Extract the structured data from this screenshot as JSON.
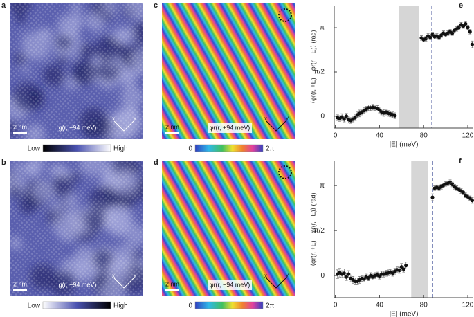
{
  "panels": [
    {
      "letter": "a",
      "scale_bar": "2 nm",
      "label": "g(r, +94 meV)",
      "low": "Low",
      "high": "High",
      "axes": [
        "x",
        "y"
      ]
    },
    {
      "letter": "b",
      "scale_bar": "2 nm",
      "label": "g(r, −94 meV)",
      "low": "Low",
      "high": "High",
      "axes": [
        "x",
        "y"
      ]
    },
    {
      "letter": "c",
      "scale_bar": "2 nm",
      "label": "φr(r, +94 meV)",
      "low": "0",
      "high": "2π",
      "axes": [
        "x",
        "y"
      ]
    },
    {
      "letter": "d",
      "scale_bar": "2 nm",
      "label": "φr(r, −94 meV)",
      "low": "0",
      "high": "2π",
      "axes": [
        "x",
        "y"
      ]
    }
  ],
  "chart_data": [
    {
      "type": "scatter",
      "panel_label": "e",
      "xlabel": "|E| (meV)",
      "ylabel": "⟨φr(r, +E) − φr(r, −E)⟩ (rad)",
      "xlim": [
        -1,
        125
      ],
      "ylim": [
        -0.42,
        3.93
      ],
      "xticks": [
        0,
        40,
        80,
        120
      ],
      "yticks": [
        0,
        {
          "value": 1.5708,
          "label": "π/2"
        },
        {
          "value": 3.1416,
          "label": "π"
        }
      ],
      "shaded_range": [
        57.5,
        76
      ],
      "shade_color": "#d6d6d6",
      "vline": 87.5,
      "vline_color": "#2b3a8c",
      "series": [
        {
          "color": "#111111",
          "x": [
            2,
            4,
            6,
            8,
            10,
            12,
            14,
            16,
            18,
            20,
            22,
            24,
            26,
            28,
            30,
            32,
            34,
            36,
            38,
            40,
            42,
            44,
            46,
            48,
            50,
            52,
            54,
            78,
            80,
            82,
            84,
            86,
            88,
            90,
            92,
            94,
            96,
            98,
            100,
            102,
            104,
            106,
            108,
            110,
            112,
            114,
            116,
            118,
            120,
            122,
            124
          ],
          "values": [
            -0.05,
            -0.08,
            -0.03,
            -0.1,
            0,
            -0.12,
            -0.15,
            -0.1,
            -0.05,
            0.05,
            0.1,
            0.15,
            0.2,
            0.25,
            0.3,
            0.3,
            0.32,
            0.3,
            0.28,
            0.22,
            0.15,
            0.12,
            0.15,
            0.1,
            0.08,
            0.05,
            0.02,
            2.78,
            2.72,
            2.75,
            2.85,
            2.8,
            2.9,
            2.82,
            2.85,
            2.8,
            2.88,
            2.95,
            2.9,
            2.95,
            3.0,
            2.95,
            3.05,
            3.1,
            3.15,
            3.25,
            3.2,
            3.28,
            3.15,
            3.0,
            2.55
          ],
          "errors": [
            0.1,
            0.1,
            0.12,
            0.1,
            0.1,
            0.12,
            0.1,
            0.1,
            0.1,
            0.1,
            0.12,
            0.1,
            0.1,
            0.1,
            0.1,
            0.1,
            0.1,
            0.1,
            0.1,
            0.1,
            0.1,
            0.12,
            0.1,
            0.1,
            0.1,
            0.1,
            0.1,
            0.08,
            0.08,
            0.08,
            0.08,
            0.08,
            0.08,
            0.08,
            0.08,
            0.08,
            0.08,
            0.08,
            0.08,
            0.08,
            0.08,
            0.08,
            0.08,
            0.08,
            0.08,
            0.08,
            0.08,
            0.08,
            0.08,
            0.08,
            0.12
          ]
        }
      ]
    },
    {
      "type": "scatter",
      "panel_label": "f",
      "xlabel": "|E| (meV)",
      "ylabel": "⟨φr(r, +E) − φr(r, −E)⟩ (rad)",
      "xlim": [
        -1,
        125
      ],
      "ylim": [
        -0.77,
        3.99
      ],
      "xticks": [
        0,
        40,
        80,
        120
      ],
      "yticks": [
        0,
        {
          "value": 1.5708,
          "label": "π/2"
        },
        {
          "value": 3.1416,
          "label": "π"
        }
      ],
      "shaded_range": [
        68.75,
        83.75
      ],
      "shade_color": "#d6d6d6",
      "vline": 88,
      "vline_color": "#2b3a8c",
      "series": [
        {
          "color": "#111111",
          "x": [
            2,
            4,
            6,
            8,
            10,
            12,
            14,
            16,
            18,
            20,
            22,
            24,
            26,
            28,
            30,
            32,
            34,
            36,
            38,
            40,
            42,
            44,
            46,
            48,
            50,
            52,
            54,
            56,
            58,
            60,
            62,
            64,
            88,
            90,
            92,
            94,
            96,
            98,
            100,
            102,
            104,
            106,
            108,
            110,
            112,
            114,
            116,
            118,
            120,
            122,
            124
          ],
          "values": [
            0.05,
            0.1,
            0.05,
            0.08,
            -0.05,
            0.05,
            -0.1,
            -0.15,
            -0.2,
            -0.2,
            -0.15,
            -0.1,
            -0.12,
            -0.05,
            -0.08,
            0,
            -0.05,
            0,
            0.02,
            -0.02,
            0.05,
            0.05,
            0.08,
            0.1,
            0.12,
            0.08,
            0.15,
            0.2,
            0.18,
            0.3,
            0.22,
            0.35,
            2.73,
            3.05,
            3.08,
            3.05,
            3.1,
            3.15,
            3.2,
            3.22,
            3.26,
            3.18,
            3.1,
            3.05,
            3.0,
            2.95,
            2.9,
            2.8,
            2.75,
            2.7,
            2.62
          ],
          "errors": [
            0.15,
            0.15,
            0.12,
            0.15,
            0.12,
            0.12,
            0.12,
            0.12,
            0.12,
            0.12,
            0.12,
            0.1,
            0.1,
            0.1,
            0.1,
            0.1,
            0.1,
            0.1,
            0.1,
            0.1,
            0.1,
            0.1,
            0.1,
            0.1,
            0.1,
            0.1,
            0.1,
            0.1,
            0.1,
            0.12,
            0.1,
            0.12,
            0.12,
            0.08,
            0.08,
            0.08,
            0.08,
            0.08,
            0.08,
            0.08,
            0.08,
            0.08,
            0.08,
            0.08,
            0.08,
            0.08,
            0.08,
            0.08,
            0.08,
            0.08,
            0.1
          ]
        }
      ]
    }
  ]
}
